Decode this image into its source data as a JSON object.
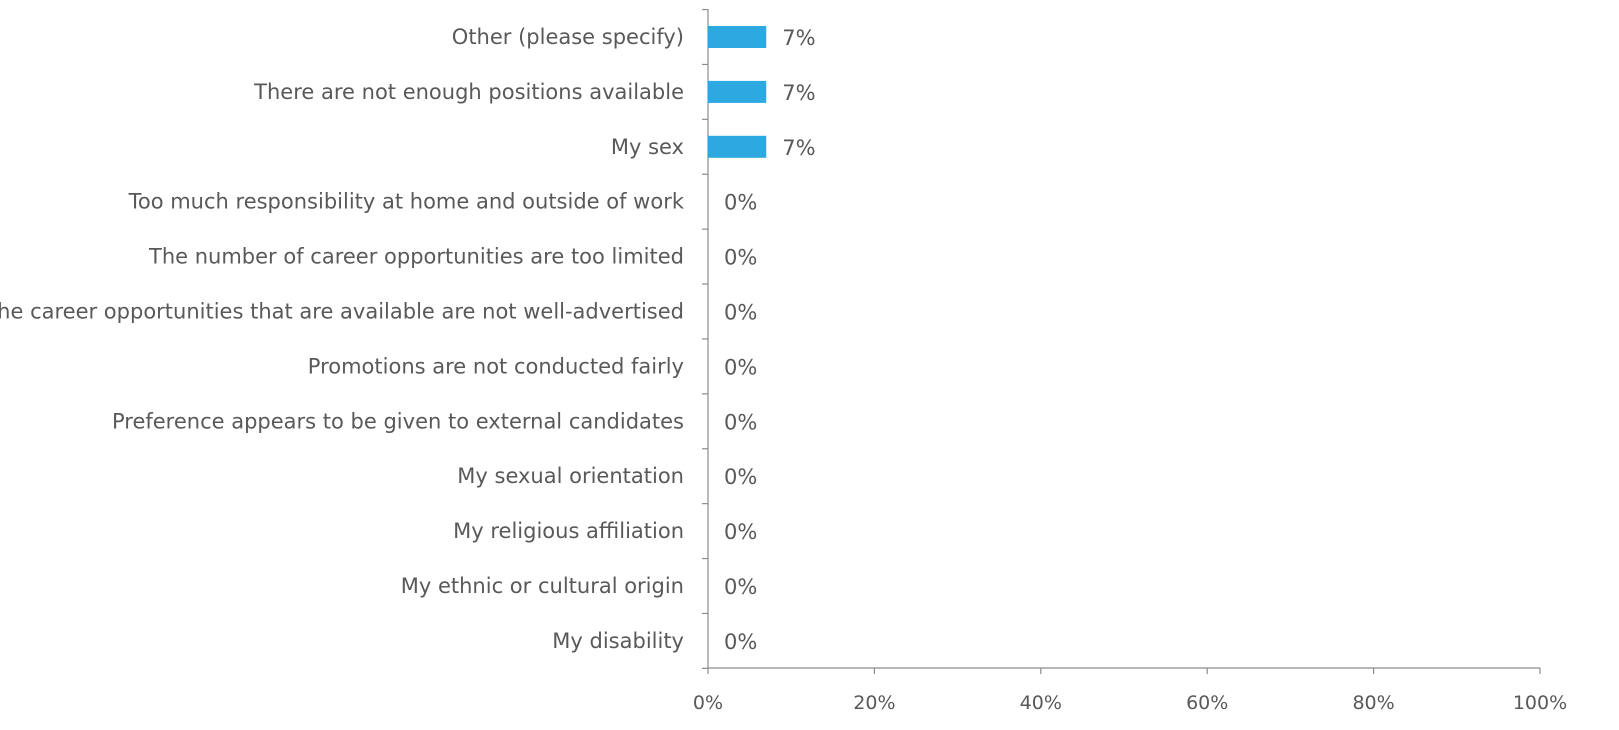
{
  "chart_data": {
    "type": "bar",
    "orientation": "horizontal",
    "categories": [
      "Other (please specify)",
      "There are not enough positions available",
      "My sex",
      "Too much responsibility at home and outside of work",
      "The number of career opportunities are too limited",
      "The career opportunities that are available are not well-advertised",
      "Promotions are not conducted fairly",
      "Preference appears to be given to external candidates",
      "My sexual orientation",
      "My religious affiliation",
      "My ethnic or cultural origin",
      "My disability"
    ],
    "values": [
      7,
      7,
      7,
      0,
      0,
      0,
      0,
      0,
      0,
      0,
      0,
      0
    ],
    "data_labels": [
      "7%",
      "7%",
      "7%",
      "0%",
      "0%",
      "0%",
      "0%",
      "0%",
      "0%",
      "0%",
      "0%",
      "0%"
    ],
    "xlim": [
      0,
      100
    ],
    "x_ticks": [
      0,
      20,
      40,
      60,
      80,
      100
    ],
    "x_tick_labels": [
      "0%",
      "20%",
      "40%",
      "60%",
      "80%",
      "100%"
    ],
    "title": "",
    "xlabel": "",
    "ylabel": "",
    "grid": false,
    "colors": {
      "bar": "#2ea8e0",
      "text": "#595959",
      "axis": "#8c8c8c"
    }
  }
}
